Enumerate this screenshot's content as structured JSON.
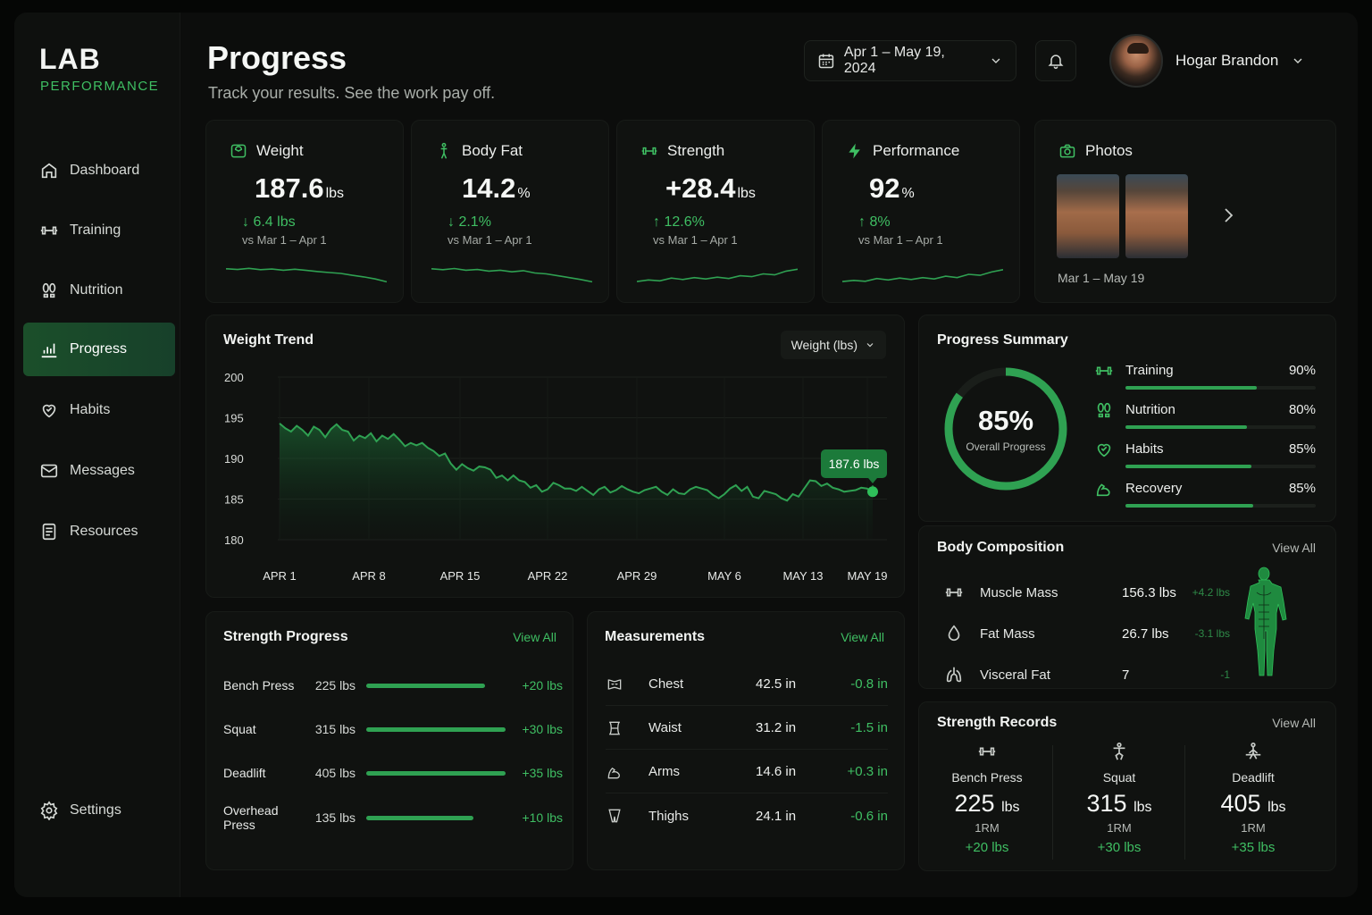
{
  "brand": {
    "line1": "LAB",
    "line2": "PERFORMANCE"
  },
  "sidebar": {
    "items": [
      {
        "label": "Dashboard",
        "icon": "home-icon"
      },
      {
        "label": "Training",
        "icon": "dumbbell-icon"
      },
      {
        "label": "Nutrition",
        "icon": "footprints-icon"
      },
      {
        "label": "Progress",
        "icon": "bar-chart-icon",
        "active": true
      },
      {
        "label": "Habits",
        "icon": "heart-icon"
      },
      {
        "label": "Messages",
        "icon": "mail-icon"
      },
      {
        "label": "Resources",
        "icon": "document-icon"
      }
    ],
    "settings": "Settings"
  },
  "header": {
    "title": "Progress",
    "subtitle": "Track your results. See the work pay off.",
    "date_range": "Apr 1 – May 19, 2024",
    "user_name": "Hogar Brandon"
  },
  "stats": [
    {
      "label": "Weight",
      "value": "187.6",
      "unit": "lbs",
      "delta": "6.4 lbs",
      "direction": "down",
      "vs": "vs Mar 1 – Apr 1",
      "spark": [
        3,
        3.3,
        2.8,
        3.4,
        3.1,
        3.6,
        3.2,
        3.7,
        4.2,
        4.6,
        5,
        5.8,
        6.5,
        7.4,
        8.6
      ]
    },
    {
      "label": "Body Fat",
      "value": "14.2",
      "unit": "%",
      "delta": "2.1%",
      "direction": "down",
      "vs": "vs Mar 1 – Apr 1",
      "spark": [
        3,
        3.4,
        2.9,
        3.6,
        3.3,
        4,
        3.6,
        4.3,
        3.8,
        4.8,
        5.2,
        6,
        6.8,
        7.6,
        8.6
      ]
    },
    {
      "label": "Strength",
      "value": "+28.4",
      "unit": "lbs",
      "delta": "12.6%",
      "direction": "up",
      "vs": "vs Mar 1 – Apr 1",
      "spark": [
        8.5,
        7.8,
        8.2,
        7,
        7.6,
        6.8,
        7.4,
        6.6,
        7.2,
        6,
        6.4,
        5.2,
        5.6,
        4,
        3.2
      ]
    },
    {
      "label": "Performance",
      "value": "92",
      "unit": "%",
      "delta": "8%",
      "direction": "up",
      "vs": "vs Mar 1 – Apr 1",
      "spark": [
        8.5,
        8,
        8.4,
        7.2,
        7.8,
        7,
        7.6,
        6.8,
        7.4,
        6.2,
        6.8,
        5.4,
        5.8,
        4.4,
        3.4
      ]
    }
  ],
  "photos": {
    "label": "Photos",
    "range": "Mar 1 – May 19"
  },
  "weight_trend": {
    "title": "Weight Trend",
    "dropdown": "Weight (lbs)",
    "tooltip": "187.6 lbs"
  },
  "chart_data": {
    "type": "area",
    "title": "Weight Trend",
    "xlabel": "",
    "ylabel": "",
    "ylim": [
      180,
      200
    ],
    "yticks": [
      "200",
      "195",
      "190",
      "185",
      "180"
    ],
    "xticks": [
      "APR 1",
      "APR 8",
      "APR 15",
      "APR 22",
      "APR 29",
      "MAY 6",
      "MAY 13",
      "MAY 19"
    ],
    "grid": true,
    "series": [
      {
        "values": [
          194.3,
          193.7,
          193.3,
          194,
          193.5,
          192.8,
          193.9,
          193.5,
          192.6,
          193.6,
          194.2,
          193.5,
          193.3,
          192.2,
          192.8,
          192.5,
          193.1,
          192.1,
          192.8,
          192.4,
          193,
          192.3,
          191.5,
          191.9,
          191.6,
          191.9,
          191.3,
          190.9,
          190.3,
          190.6,
          189.4,
          188.6,
          189.3,
          188.8,
          188.5,
          189,
          188.9,
          188.6,
          187.6,
          187.9,
          187.3,
          187.9,
          187.3,
          187.1,
          186.4,
          186.7,
          185.9,
          186.2,
          187,
          186.7,
          186.3,
          186.3,
          186,
          186.5,
          186,
          185.5,
          186.2,
          186.5,
          185.8,
          186.1,
          186.6,
          186.2,
          185.9,
          185.7,
          186.1,
          186.3,
          186.5,
          185.9,
          185.5,
          186.2,
          185.7,
          185.6,
          186.2,
          186.5,
          186.3,
          186.1,
          185.5,
          185.1,
          185.6,
          186.3,
          186.7,
          186,
          186.5,
          185.3,
          185.1,
          186,
          185.8,
          185.6,
          185.1,
          184.8,
          185.6,
          185.3,
          186.3,
          187.3,
          187.2,
          186.6,
          186.9,
          186.4,
          186.2,
          185.9,
          186,
          186.1,
          186.4,
          186.3,
          185.9
        ]
      }
    ]
  },
  "strength_progress": {
    "title": "Strength Progress",
    "view_all": "View All",
    "rows": [
      {
        "name": "Bench Press",
        "weight": "225 lbs",
        "delta": "+20 lbs",
        "fill": 0.85
      },
      {
        "name": "Squat",
        "weight": "315 lbs",
        "delta": "+30 lbs",
        "fill": 1.0
      },
      {
        "name": "Deadlift",
        "weight": "405 lbs",
        "delta": "+35 lbs",
        "fill": 1.0
      },
      {
        "name": "Overhead Press",
        "weight": "135 lbs",
        "delta": "+10 lbs",
        "fill": 0.77
      }
    ]
  },
  "measurements": {
    "title": "Measurements",
    "view_all": "View All",
    "rows": [
      {
        "name": "Chest",
        "value": "42.5 in",
        "delta": "-0.8 in",
        "icon": "chest-icon"
      },
      {
        "name": "Waist",
        "value": "31.2 in",
        "delta": "-1.5 in",
        "icon": "waist-icon"
      },
      {
        "name": "Arms",
        "value": "14.6 in",
        "delta": "+0.3 in",
        "icon": "arm-icon"
      },
      {
        "name": "Thighs",
        "value": "24.1 in",
        "delta": "-0.6 in",
        "icon": "thigh-icon"
      }
    ]
  },
  "progress_summary": {
    "title": "Progress Summary",
    "overall": "85%",
    "overall_label": "Overall Progress",
    "overall_value": 0.85,
    "rows": [
      {
        "name": "Training",
        "pct": "90%",
        "value": 0.69,
        "icon": "dumbbell-icon"
      },
      {
        "name": "Nutrition",
        "pct": "80%",
        "value": 0.64,
        "icon": "footprints-icon"
      },
      {
        "name": "Habits",
        "pct": "85%",
        "value": 0.66,
        "icon": "heart-icon"
      },
      {
        "name": "Recovery",
        "pct": "85%",
        "value": 0.67,
        "icon": "arm-icon"
      }
    ]
  },
  "body_composition": {
    "title": "Body Composition",
    "view_all": "View All",
    "rows": [
      {
        "name": "Muscle Mass",
        "value": "156.3 lbs",
        "delta": "+4.2 lbs",
        "icon": "dumbbell-icon"
      },
      {
        "name": "Fat Mass",
        "value": "26.7 lbs",
        "delta": "-3.1 lbs",
        "icon": "droplet-icon"
      },
      {
        "name": "Visceral Fat",
        "value": "7",
        "delta": "-1",
        "icon": "lungs-icon"
      }
    ]
  },
  "strength_records": {
    "title": "Strength Records",
    "view_all": "View All",
    "cols": [
      {
        "name": "Bench Press",
        "value": "225",
        "unit": "lbs",
        "rm": "1RM",
        "delta": "+20 lbs"
      },
      {
        "name": "Squat",
        "value": "315",
        "unit": "lbs",
        "rm": "1RM",
        "delta": "+30 lbs"
      },
      {
        "name": "Deadlift",
        "value": "405",
        "unit": "lbs",
        "rm": "1RM",
        "delta": "+35 lbs"
      }
    ]
  },
  "colors": {
    "accent": "#3fbf63",
    "accent_dark": "#2fa152",
    "bg": "#0c0d0c",
    "card": "#101210"
  }
}
